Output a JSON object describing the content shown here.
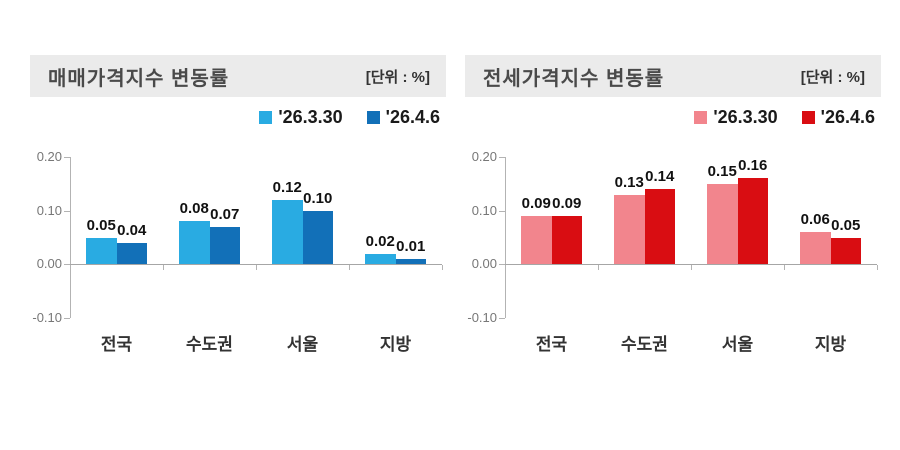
{
  "page": {
    "background": "#ffffff"
  },
  "chart_data": [
    {
      "type": "bar",
      "title": "매매가격지수 변동률",
      "unit_label": "[단위 : %]",
      "categories": [
        "전국",
        "수도권",
        "서울",
        "지방"
      ],
      "series": [
        {
          "name": "'26.3.30",
          "values": [
            0.05,
            0.08,
            0.12,
            0.02
          ],
          "color": "#29abe2",
          "hatch": "subtle"
        },
        {
          "name": "'26.4.6",
          "values": [
            0.04,
            0.07,
            0.1,
            0.01
          ],
          "color": "#1270b8",
          "hatch": "subtle"
        }
      ],
      "ylim": [
        -0.1,
        0.2
      ],
      "yticks": [
        "0.20",
        "0.10",
        "0.00",
        "-0.10"
      ],
      "ytick_values": [
        0.2,
        0.1,
        0.0,
        -0.1
      ],
      "grid": false,
      "legend_position": "top-right",
      "value_label_format": "2-decimals"
    },
    {
      "type": "bar",
      "title": "전세가격지수 변동률",
      "unit_label": "[단위 : %]",
      "categories": [
        "전국",
        "수도권",
        "서울",
        "지방"
      ],
      "series": [
        {
          "name": "'26.3.30",
          "values": [
            0.09,
            0.13,
            0.15,
            0.06
          ],
          "color": "#f2858d",
          "hatch": "strong"
        },
        {
          "name": "'26.4.6",
          "values": [
            0.09,
            0.14,
            0.16,
            0.05
          ],
          "color": "#d90d12",
          "hatch": "faint"
        }
      ],
      "ylim": [
        -0.1,
        0.2
      ],
      "yticks": [
        "0.20",
        "0.10",
        "0.00",
        "-0.10"
      ],
      "ytick_values": [
        0.2,
        0.1,
        0.0,
        -0.1
      ],
      "grid": false,
      "legend_position": "top-right",
      "value_label_format": "2-decimals"
    }
  ],
  "colors": {
    "header_band": "#ebebeb",
    "title_text": "#4a4a4a",
    "axis": "#b3b3b3",
    "ytick_text": "#777777",
    "category_text": "#333333",
    "value_text": "#111111",
    "blue_light": "#29abe2",
    "blue_dark": "#1270b8",
    "pink": "#f2858d",
    "red": "#d90d12"
  }
}
